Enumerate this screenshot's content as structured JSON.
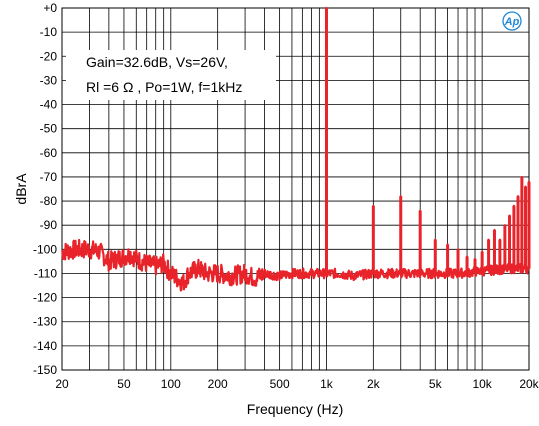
{
  "chart_data": {
    "type": "line",
    "title": "",
    "xlabel": "Frequency (Hz)",
    "ylabel": "dBrA",
    "xscale": "log",
    "xlim": [
      20,
      20000
    ],
    "ylim": [
      -150,
      0
    ],
    "grid": true,
    "x_ticks": [
      {
        "value": 20,
        "label": "20"
      },
      {
        "value": 50,
        "label": "50"
      },
      {
        "value": 100,
        "label": "100"
      },
      {
        "value": 200,
        "label": "200"
      },
      {
        "value": 500,
        "label": "500"
      },
      {
        "value": 1000,
        "label": "1k"
      },
      {
        "value": 2000,
        "label": "2k"
      },
      {
        "value": 5000,
        "label": "5k"
      },
      {
        "value": 10000,
        "label": "10k"
      },
      {
        "value": 20000,
        "label": "20k"
      }
    ],
    "y_ticks": [
      {
        "value": 0,
        "label": "+0"
      },
      {
        "value": -10,
        "label": "-10"
      },
      {
        "value": -20,
        "label": "-20"
      },
      {
        "value": -30,
        "label": "-30"
      },
      {
        "value": -40,
        "label": "-40"
      },
      {
        "value": -50,
        "label": "-50"
      },
      {
        "value": -60,
        "label": "-60"
      },
      {
        "value": -70,
        "label": "-70"
      },
      {
        "value": -80,
        "label": "-80"
      },
      {
        "value": -90,
        "label": "-90"
      },
      {
        "value": -100,
        "label": "-100"
      },
      {
        "value": -110,
        "label": "-110"
      },
      {
        "value": -120,
        "label": "-120"
      },
      {
        "value": -130,
        "label": "-130"
      },
      {
        "value": -140,
        "label": "-140"
      },
      {
        "value": -150,
        "label": "-150"
      }
    ],
    "annotations": [
      "Gain=32.6dB, Vs=26V,",
      "Rl =6 Ω , Po=1W, f=1kHz"
    ],
    "series": [
      {
        "color": "#e8232a",
        "noise_floor": [
          [
            20,
            -101
          ],
          [
            25,
            -100
          ],
          [
            30,
            -100
          ],
          [
            35,
            -101
          ],
          [
            40,
            -105
          ],
          [
            45,
            -104
          ],
          [
            50,
            -103
          ],
          [
            55,
            -102
          ],
          [
            60,
            -104
          ],
          [
            70,
            -106
          ],
          [
            80,
            -107
          ],
          [
            90,
            -106
          ],
          [
            100,
            -110
          ],
          [
            110,
            -112
          ],
          [
            120,
            -114
          ],
          [
            130,
            -110
          ],
          [
            150,
            -108
          ],
          [
            170,
            -110
          ],
          [
            200,
            -110
          ],
          [
            250,
            -111
          ],
          [
            300,
            -110
          ],
          [
            350,
            -112
          ],
          [
            400,
            -110
          ],
          [
            500,
            -111
          ],
          [
            600,
            -110
          ],
          [
            700,
            -110
          ],
          [
            800,
            -110
          ],
          [
            900,
            -110
          ],
          [
            1000,
            -110
          ],
          [
            1200,
            -110
          ],
          [
            1500,
            -111
          ],
          [
            2000,
            -110
          ],
          [
            3000,
            -110
          ],
          [
            4000,
            -110
          ],
          [
            5000,
            -110
          ],
          [
            7000,
            -110
          ],
          [
            10000,
            -109
          ],
          [
            15000,
            -108
          ],
          [
            20000,
            -108
          ]
        ],
        "peaks": [
          [
            1000,
            0
          ],
          [
            2000,
            -82
          ],
          [
            3000,
            -78
          ],
          [
            4000,
            -84
          ],
          [
            5000,
            -96
          ],
          [
            6000,
            -98
          ],
          [
            7000,
            -100
          ],
          [
            8000,
            -103
          ],
          [
            9000,
            -104
          ],
          [
            10000,
            -101
          ],
          [
            11000,
            -96
          ],
          [
            12000,
            -92
          ],
          [
            13000,
            -96
          ],
          [
            14000,
            -90
          ],
          [
            15000,
            -86
          ],
          [
            16000,
            -82
          ],
          [
            17000,
            -78
          ],
          [
            18000,
            -70
          ],
          [
            19000,
            -74
          ],
          [
            20000,
            -72
          ]
        ]
      }
    ]
  }
}
